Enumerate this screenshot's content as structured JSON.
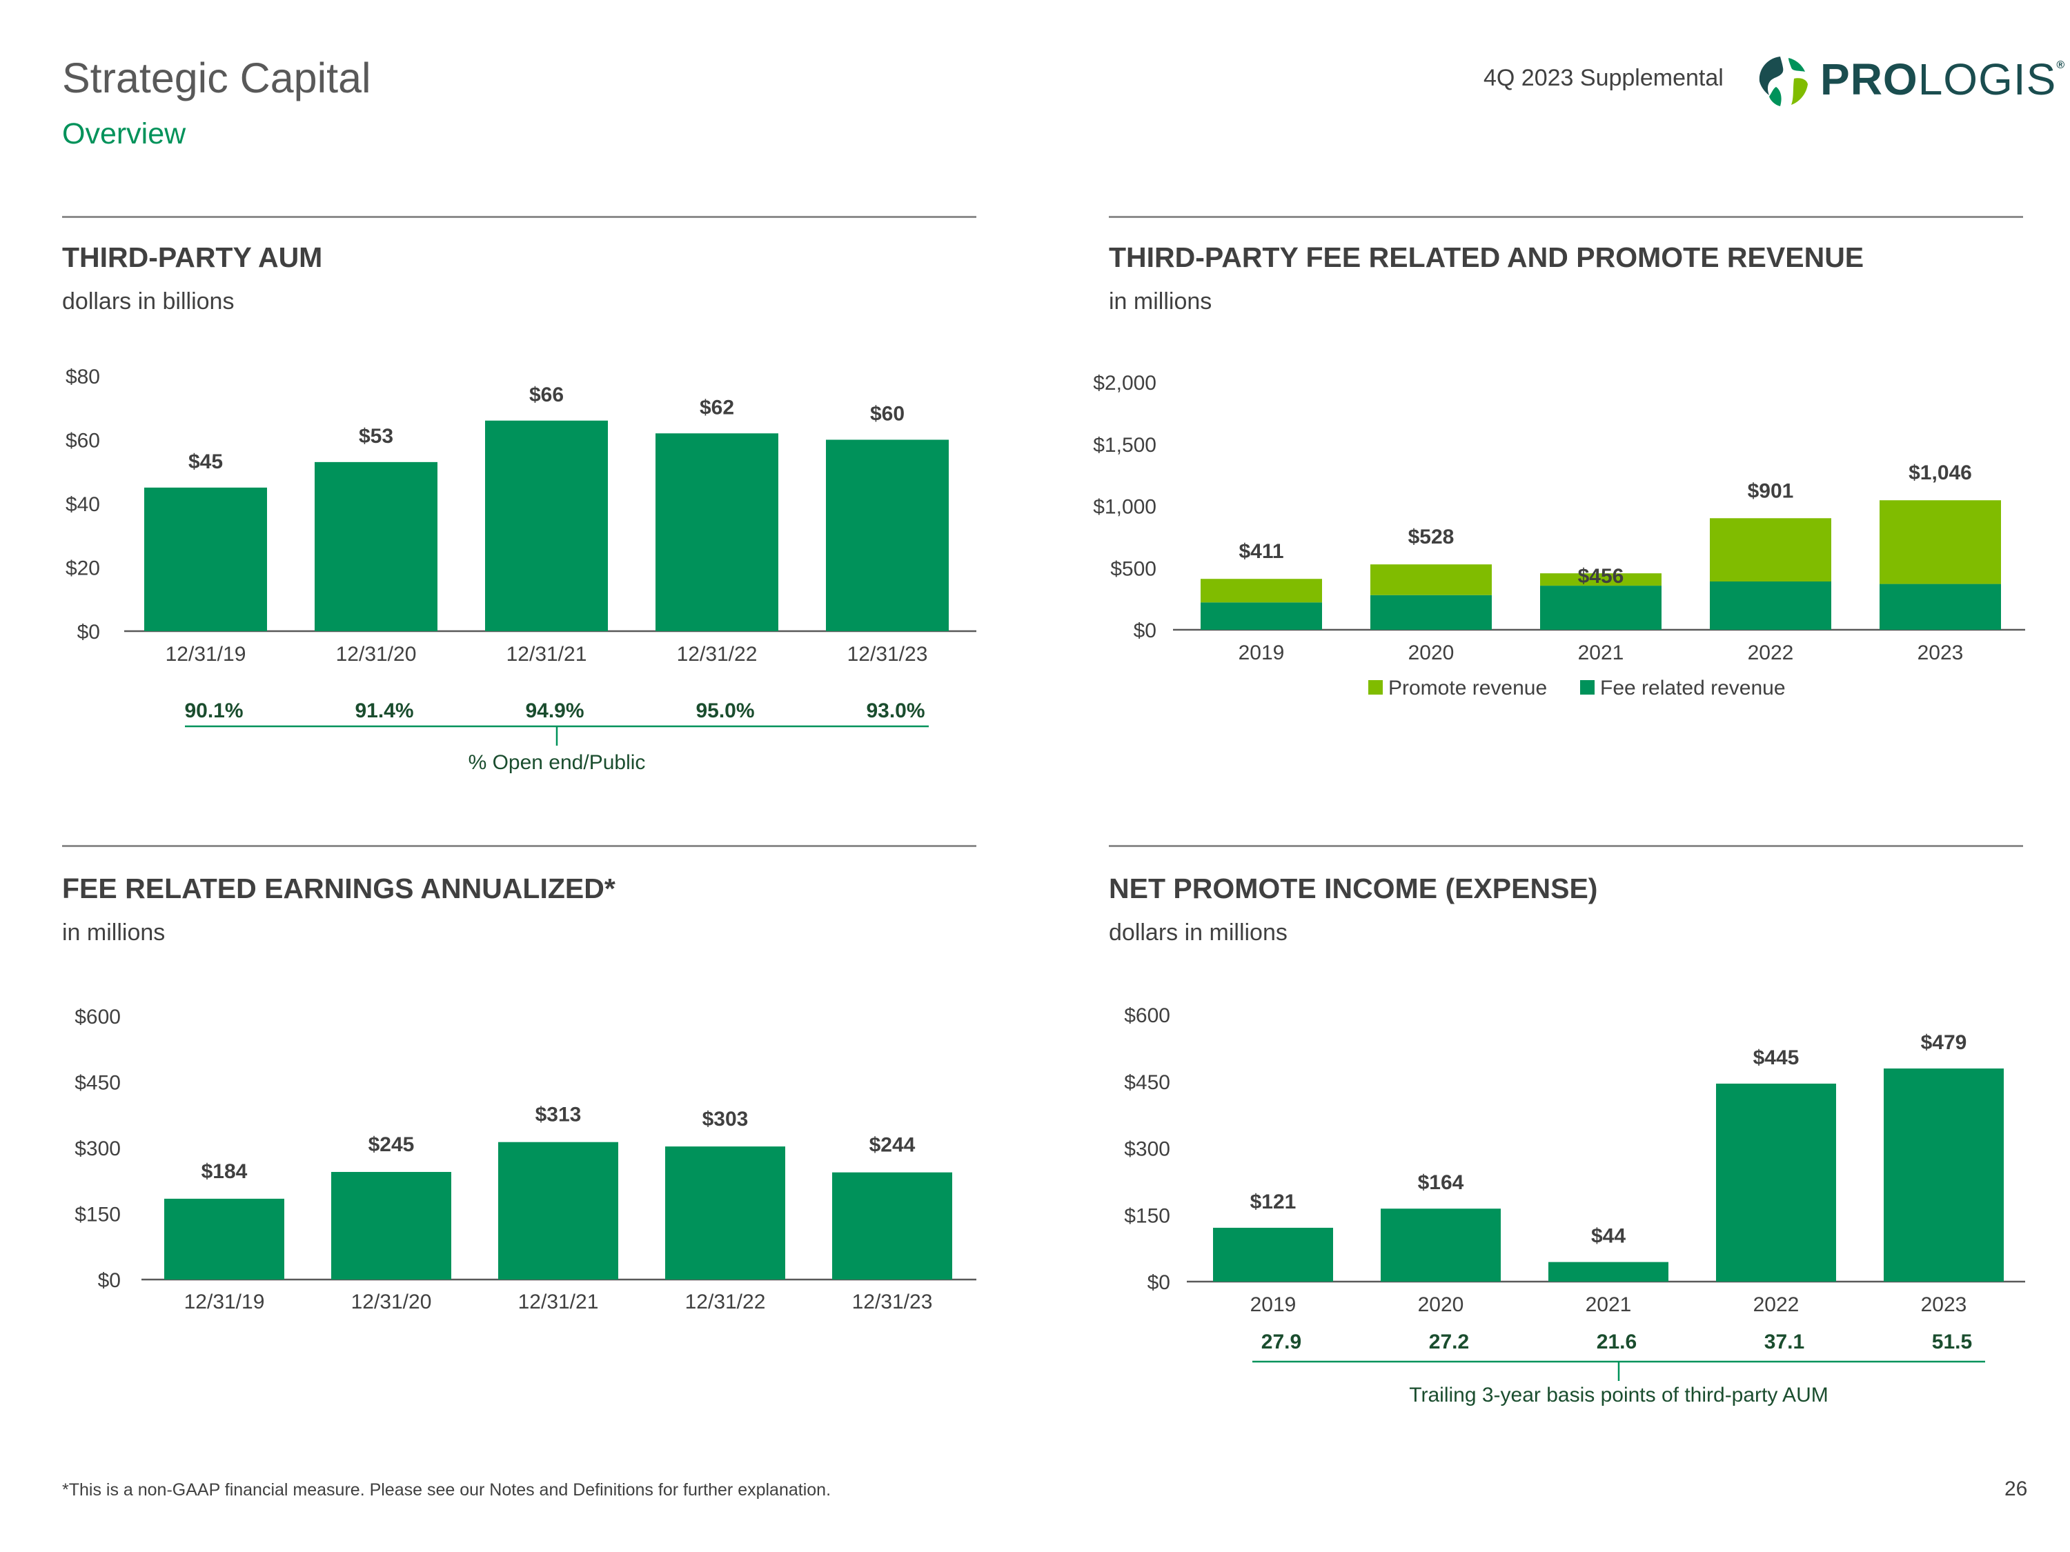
{
  "header": {
    "title": "Strategic Capital",
    "subtitle": "Overview",
    "supplemental": "4Q 2023 Supplemental",
    "logo_bold": "PRO",
    "logo_light": "LOGIS",
    "logo_mark": "®"
  },
  "panels": {
    "aum": {
      "title": "THIRD-PARTY AUM",
      "subtitle": "dollars in billions"
    },
    "revenue": {
      "title": "THIRD-PARTY FEE RELATED AND PROMOTE REVENUE",
      "subtitle": "in millions"
    },
    "fre": {
      "title": "FEE RELATED EARNINGS ANNUALIZED*",
      "subtitle": "in millions"
    },
    "promote": {
      "title": "NET PROMOTE INCOME (EXPENSE)",
      "subtitle": "dollars in millions"
    }
  },
  "footer": {
    "note": "*This is a non-GAAP financial measure. Please see our Notes and Definitions for further explanation.",
    "page": "26"
  },
  "colors": {
    "dark_green": "#00925a",
    "light_green": "#80bc00",
    "axis": "#595959",
    "text": "#404040",
    "row_text": "#1a4d2e"
  },
  "chart_data": [
    {
      "id": "aum",
      "type": "bar",
      "title": "THIRD-PARTY AUM",
      "ylabel": "dollars in billions",
      "categories": [
        "12/31/19",
        "12/31/20",
        "12/31/21",
        "12/31/22",
        "12/31/23"
      ],
      "values": [
        45,
        53,
        66,
        62,
        60
      ],
      "data_labels": [
        "$45",
        "$53",
        "$66",
        "$62",
        "$60"
      ],
      "ylim": [
        0,
        80
      ],
      "yticks": [
        "$0",
        "$20",
        "$40",
        "$60",
        "$80"
      ],
      "row_values": [
        "90.1%",
        "91.4%",
        "94.9%",
        "95.0%",
        "93.0%"
      ],
      "row_caption": "% Open end/Public"
    },
    {
      "id": "revenue",
      "type": "bar",
      "stacked": true,
      "title": "THIRD-PARTY FEE RELATED AND PROMOTE REVENUE",
      "ylabel": "in millions",
      "categories": [
        "2019",
        "2020",
        "2021",
        "2022",
        "2023"
      ],
      "series": [
        {
          "name": "Fee related revenue",
          "values": [
            221,
            280,
            356,
            390,
            370
          ]
        },
        {
          "name": "Promote revenue",
          "values": [
            190,
            248,
            100,
            511,
            676
          ]
        }
      ],
      "totals": [
        411,
        528,
        456,
        901,
        1046
      ],
      "data_labels": [
        "$411",
        "$528",
        "$456",
        "$901",
        "$1,046"
      ],
      "ylim": [
        0,
        2000
      ],
      "yticks": [
        "$0",
        "$500",
        "$1,000",
        "$1,500",
        "$2,000"
      ],
      "legend": [
        "Promote revenue",
        "Fee related revenue"
      ]
    },
    {
      "id": "fre",
      "type": "bar",
      "title": "FEE RELATED EARNINGS ANNUALIZED*",
      "ylabel": "in millions",
      "categories": [
        "12/31/19",
        "12/31/20",
        "12/31/21",
        "12/31/22",
        "12/31/23"
      ],
      "values": [
        184,
        245,
        313,
        303,
        244
      ],
      "data_labels": [
        "$184",
        "$245",
        "$313",
        "$303",
        "$244"
      ],
      "ylim": [
        0,
        600
      ],
      "yticks": [
        "$0",
        "$150",
        "$300",
        "$450",
        "$600"
      ]
    },
    {
      "id": "promote",
      "type": "bar",
      "title": "NET PROMOTE INCOME (EXPENSE)",
      "ylabel": "dollars in millions",
      "categories": [
        "2019",
        "2020",
        "2021",
        "2022",
        "2023"
      ],
      "values": [
        121,
        164,
        44,
        445,
        479
      ],
      "data_labels": [
        "$121",
        "$164",
        "$44",
        "$445",
        "$479"
      ],
      "ylim": [
        0,
        600
      ],
      "yticks": [
        "$0",
        "$150",
        "$300",
        "$450",
        "$600"
      ],
      "row_values": [
        "27.9",
        "27.2",
        "21.6",
        "37.1",
        "51.5"
      ],
      "row_caption": "Trailing 3-year basis points of third-party AUM"
    }
  ]
}
